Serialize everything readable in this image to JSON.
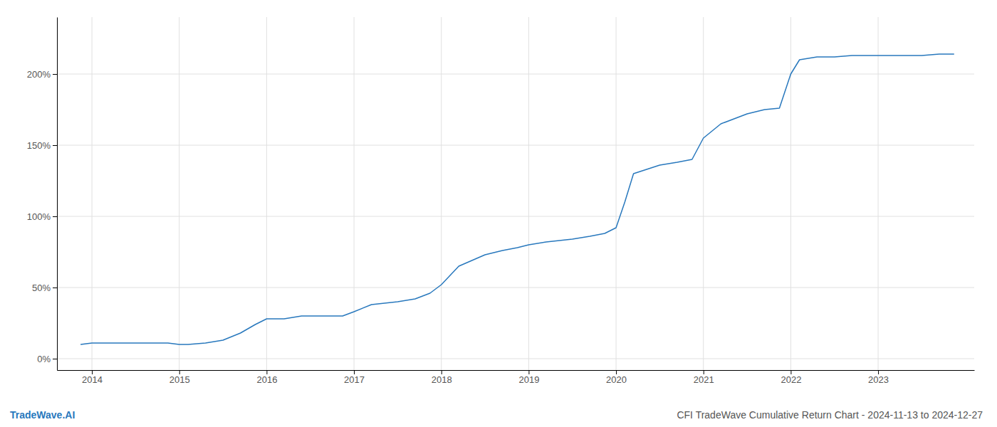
{
  "chart_data": {
    "type": "line",
    "title": "CFI TradeWave Cumulative Return Chart - 2024-11-13 to 2024-12-27",
    "annotations": [
      "TradeWave.AI"
    ],
    "color": "#2878bd",
    "x": [
      2013.87,
      2014.0,
      2014.1,
      2014.3,
      2014.5,
      2014.7,
      2014.87,
      2015.0,
      2015.05,
      2015.1,
      2015.3,
      2015.5,
      2015.7,
      2015.87,
      2016.0,
      2016.2,
      2016.4,
      2016.6,
      2016.87,
      2017.0,
      2017.2,
      2017.5,
      2017.7,
      2017.87,
      2018.0,
      2018.2,
      2018.5,
      2018.7,
      2018.87,
      2019.0,
      2019.2,
      2019.5,
      2019.7,
      2019.87,
      2020.0,
      2020.1,
      2020.2,
      2020.5,
      2020.7,
      2020.87,
      2021.0,
      2021.2,
      2021.5,
      2021.7,
      2021.87,
      2022.0,
      2022.1,
      2022.3,
      2022.5,
      2022.7,
      2022.87,
      2023.0,
      2023.2,
      2023.5,
      2023.7,
      2023.87
    ],
    "values": [
      10,
      11,
      11,
      11,
      11,
      11,
      11,
      10,
      10,
      10,
      11,
      13,
      18,
      24,
      28,
      28,
      30,
      30,
      30,
      33,
      38,
      40,
      42,
      46,
      52,
      65,
      73,
      76,
      78,
      80,
      82,
      84,
      86,
      88,
      92,
      110,
      130,
      136,
      138,
      140,
      155,
      165,
      172,
      175,
      176,
      200,
      210,
      212,
      212,
      213,
      213,
      213,
      213,
      213,
      214,
      214
    ],
    "xlim": [
      2013.6,
      2024.1
    ],
    "ylim": [
      -8,
      240
    ],
    "xticks": [
      2014,
      2015,
      2016,
      2017,
      2018,
      2019,
      2020,
      2021,
      2022,
      2023
    ],
    "yticks": [
      {
        "value": 0,
        "label": "0%"
      },
      {
        "value": 50,
        "label": "50%"
      },
      {
        "value": 100,
        "label": "100%"
      },
      {
        "value": 150,
        "label": "150%"
      },
      {
        "value": 200,
        "label": "200%"
      }
    ],
    "grid": true
  }
}
